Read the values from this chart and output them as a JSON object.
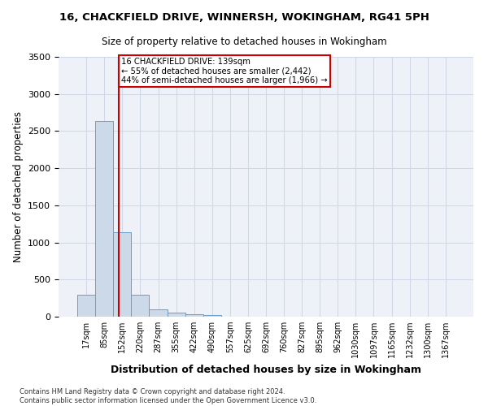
{
  "title": "16, CHACKFIELD DRIVE, WINNERSH, WOKINGHAM, RG41 5PH",
  "subtitle": "Size of property relative to detached houses in Wokingham",
  "xlabel": "Distribution of detached houses by size in Wokingham",
  "ylabel": "Number of detached properties",
  "bar_labels": [
    "17sqm",
    "85sqm",
    "152sqm",
    "220sqm",
    "287sqm",
    "355sqm",
    "422sqm",
    "490sqm",
    "557sqm",
    "625sqm",
    "692sqm",
    "760sqm",
    "827sqm",
    "895sqm",
    "962sqm",
    "1030sqm",
    "1097sqm",
    "1165sqm",
    "1232sqm",
    "1300sqm",
    "1367sqm"
  ],
  "bar_values": [
    290,
    2640,
    1140,
    295,
    100,
    55,
    35,
    20,
    0,
    0,
    0,
    0,
    0,
    0,
    0,
    0,
    0,
    0,
    0,
    0,
    0
  ],
  "bar_color": "#ccd9e8",
  "bar_edge_color": "#6a9ec8",
  "grid_color": "#d0d8e8",
  "background_color": "#eef2f8",
  "property_label": "16 CHACKFIELD DRIVE: 139sqm",
  "annotation_line1": "← 55% of detached houses are smaller (2,442)",
  "annotation_line2": "44% of semi-detached houses are larger (1,966) →",
  "red_line_color": "#cc0000",
  "annotation_box_color": "#ffffff",
  "annotation_box_edge_color": "#cc0000",
  "ylim": [
    0,
    3500
  ],
  "yticks": [
    0,
    500,
    1000,
    1500,
    2000,
    2500,
    3000,
    3500
  ],
  "red_line_x": 1.82,
  "footer_line1": "Contains HM Land Registry data © Crown copyright and database right 2024.",
  "footer_line2": "Contains public sector information licensed under the Open Government Licence v3.0."
}
